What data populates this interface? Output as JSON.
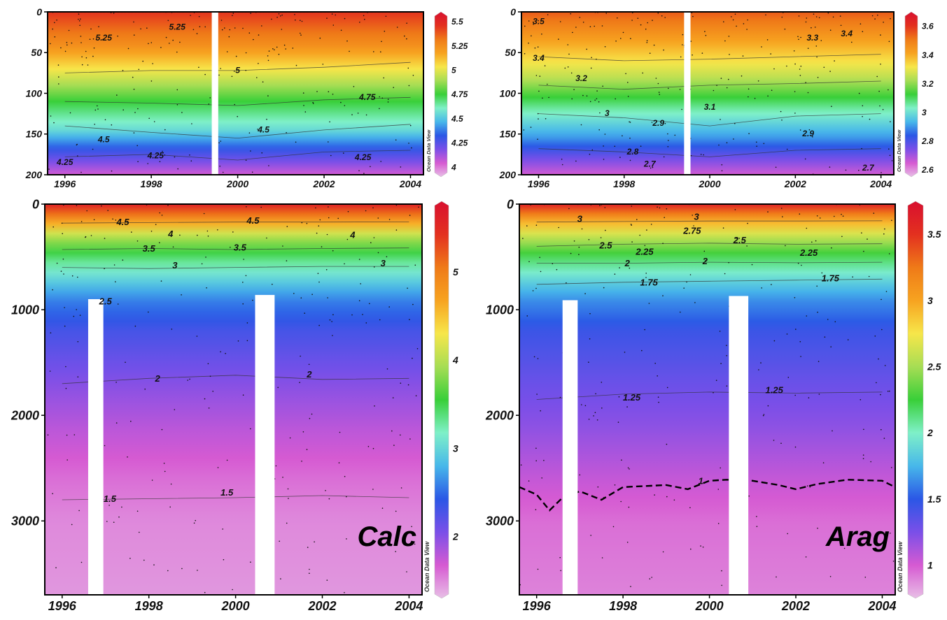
{
  "chart_data": [
    {
      "id": "top-left",
      "type": "heatmap",
      "yrange": [
        0,
        200
      ],
      "xrange": [
        1995.6,
        2004.3
      ],
      "xticks": [
        "1996",
        "1998",
        "2000",
        "2002",
        "2004"
      ],
      "yticks": [
        "0",
        "50",
        "100",
        "150",
        "200"
      ],
      "colorbar": {
        "range": [
          3.9,
          5.6
        ],
        "ticks": [
          "5.5",
          "5.25",
          "5",
          "4.75",
          "4.5",
          "4.25",
          "4"
        ]
      },
      "profile": [
        [
          0,
          5.45
        ],
        [
          40,
          5.25
        ],
        [
          75,
          5.0
        ],
        [
          110,
          4.75
        ],
        [
          145,
          4.55
        ],
        [
          170,
          4.3
        ],
        [
          200,
          4.05
        ]
      ],
      "gaps": [
        {
          "x": [
            1999.4,
            1999.55
          ],
          "ymin": 0
        }
      ],
      "contours": [
        {
          "label": "5",
          "points": [
            [
              1996,
              75
            ],
            [
              1998,
              72
            ],
            [
              2000,
              72
            ],
            [
              2002,
              68
            ],
            [
              2004,
              62
            ]
          ]
        },
        {
          "label": "4.75",
          "points": [
            [
              1996,
              110
            ],
            [
              1998,
              112
            ],
            [
              2000,
              115
            ],
            [
              2002,
              108
            ],
            [
              2004,
              105
            ]
          ]
        },
        {
          "label": "4.5",
          "points": [
            [
              1996,
              140
            ],
            [
              1998,
              148
            ],
            [
              2000,
              155
            ],
            [
              2002,
              145
            ],
            [
              2004,
              138
            ]
          ]
        },
        {
          "label": "4.25",
          "points": [
            [
              1996,
              178
            ],
            [
              1998,
              175
            ],
            [
              2000,
              182
            ],
            [
              2002,
              172
            ],
            [
              2004,
              170
            ]
          ]
        }
      ],
      "contour_labels": [
        {
          "text": "5.25",
          "x": 1996.9,
          "y": 35
        },
        {
          "text": "5.25",
          "x": 1998.6,
          "y": 22
        },
        {
          "text": "5",
          "x": 2000.0,
          "y": 75
        },
        {
          "text": "4.75",
          "x": 2003.0,
          "y": 108
        },
        {
          "text": "4.5",
          "x": 2000.6,
          "y": 148
        },
        {
          "text": "4.25",
          "x": 1996.0,
          "y": 188
        },
        {
          "text": "4.25",
          "x": 2002.9,
          "y": 182
        },
        {
          "text": "4.5",
          "x": 1996.9,
          "y": 160
        },
        {
          "text": "4.25",
          "x": 1998.1,
          "y": 180
        }
      ]
    },
    {
      "id": "top-right",
      "type": "heatmap",
      "yrange": [
        0,
        200
      ],
      "xrange": [
        1995.6,
        2004.3
      ],
      "xticks": [
        "1996",
        "1998",
        "2000",
        "2002",
        "2004"
      ],
      "yticks": [
        "0",
        "50",
        "100",
        "150",
        "200"
      ],
      "colorbar": {
        "range": [
          2.55,
          3.7
        ],
        "ticks": [
          "3.6",
          "3.4",
          "3.2",
          "3",
          "2.8",
          "2.6"
        ]
      },
      "profile": [
        [
          0,
          3.55
        ],
        [
          40,
          3.4
        ],
        [
          80,
          3.25
        ],
        [
          120,
          3.05
        ],
        [
          155,
          2.9
        ],
        [
          180,
          2.75
        ],
        [
          200,
          2.65
        ]
      ],
      "gaps": [
        {
          "x": [
            1999.4,
            1999.55
          ],
          "ymin": 0
        }
      ],
      "contours": [
        {
          "label": "3.4",
          "points": [
            [
              1996,
              55
            ],
            [
              1998,
              60
            ],
            [
              2000,
              58
            ],
            [
              2002,
              55
            ],
            [
              2004,
              52
            ]
          ]
        },
        {
          "label": "3.2",
          "points": [
            [
              1996,
              90
            ],
            [
              1998,
              95
            ],
            [
              2000,
              90
            ],
            [
              2002,
              88
            ],
            [
              2004,
              85
            ]
          ]
        },
        {
          "label": "3",
          "points": [
            [
              1996,
              125
            ],
            [
              1998,
              130
            ],
            [
              2000,
              140
            ],
            [
              2002,
              128
            ],
            [
              2004,
              125
            ]
          ]
        },
        {
          "label": "2.8",
          "points": [
            [
              1996,
              168
            ],
            [
              1998,
              172
            ],
            [
              2000,
              178
            ],
            [
              2002,
              170
            ],
            [
              2004,
              168
            ]
          ]
        }
      ],
      "contour_labels": [
        {
          "text": "3.5",
          "x": 1996.0,
          "y": 15
        },
        {
          "text": "3.4",
          "x": 1996.0,
          "y": 60
        },
        {
          "text": "3.2",
          "x": 1997.0,
          "y": 85
        },
        {
          "text": "3",
          "x": 1997.6,
          "y": 128
        },
        {
          "text": "2.9",
          "x": 1998.8,
          "y": 140
        },
        {
          "text": "3.1",
          "x": 2000.0,
          "y": 120
        },
        {
          "text": "2.9",
          "x": 2002.3,
          "y": 153
        },
        {
          "text": "2.7",
          "x": 2003.7,
          "y": 195
        },
        {
          "text": "2.8",
          "x": 1998.2,
          "y": 175
        },
        {
          "text": "3.3",
          "x": 2002.4,
          "y": 35
        },
        {
          "text": "3.4",
          "x": 2003.2,
          "y": 30
        },
        {
          "text": "2.7",
          "x": 1998.6,
          "y": 190
        }
      ]
    },
    {
      "id": "bottom-left",
      "type": "heatmap",
      "yrange": [
        0,
        3700
      ],
      "xrange": [
        1995.6,
        2004.3
      ],
      "xticks": [
        "1996",
        "1998",
        "2000",
        "2002",
        "2004"
      ],
      "yticks": [
        "0",
        "1000",
        "2000",
        "3000"
      ],
      "colorbar": {
        "range": [
          1.3,
          5.8
        ],
        "ticks": [
          "5",
          "4",
          "3",
          "2"
        ]
      },
      "profile": [
        [
          0,
          5.6
        ],
        [
          150,
          4.8
        ],
        [
          300,
          4.0
        ],
        [
          500,
          3.4
        ],
        [
          700,
          3.0
        ],
        [
          900,
          2.6
        ],
        [
          1200,
          2.3
        ],
        [
          1700,
          2.0
        ],
        [
          2100,
          1.8
        ],
        [
          2600,
          1.6
        ],
        [
          3000,
          1.5
        ],
        [
          3700,
          1.45
        ]
      ],
      "gaps": [
        {
          "x": [
            1996.6,
            1996.95
          ],
          "ymin": 900
        },
        {
          "x": [
            2000.45,
            2000.9
          ],
          "ymin": 860
        }
      ],
      "contours": [
        {
          "label": "4.5",
          "points": [
            [
              1996,
              180
            ],
            [
              1998,
              175
            ],
            [
              2000,
              170
            ],
            [
              2002,
              170
            ],
            [
              2004,
              168
            ]
          ]
        },
        {
          "label": "3.5",
          "points": [
            [
              1996,
              430
            ],
            [
              1998,
              420
            ],
            [
              2000,
              430
            ],
            [
              2002,
              420
            ],
            [
              2004,
              415
            ]
          ]
        },
        {
          "label": "3",
          "points": [
            [
              1996,
              600
            ],
            [
              1998,
              610
            ],
            [
              2000,
              600
            ],
            [
              2002,
              590
            ],
            [
              2004,
              590
            ]
          ]
        },
        {
          "label": "2",
          "points": [
            [
              1996,
              1700
            ],
            [
              1998,
              1650
            ],
            [
              2000,
              1620
            ],
            [
              2002,
              1660
            ],
            [
              2004,
              1650
            ]
          ]
        },
        {
          "label": "1.5",
          "points": [
            [
              1996,
              2800
            ],
            [
              1998,
              2790
            ],
            [
              2000,
              2780
            ],
            [
              2002,
              2760
            ],
            [
              2004,
              2780
            ]
          ]
        }
      ],
      "contour_labels": [
        {
          "text": "4.5",
          "x": 1997.4,
          "y": 200
        },
        {
          "text": "4.5",
          "x": 2000.4,
          "y": 185
        },
        {
          "text": "4",
          "x": 1998.5,
          "y": 310
        },
        {
          "text": "4",
          "x": 2002.7,
          "y": 320
        },
        {
          "text": "3.5",
          "x": 1998.0,
          "y": 450
        },
        {
          "text": "3.5",
          "x": 2000.1,
          "y": 440
        },
        {
          "text": "3",
          "x": 1998.6,
          "y": 610
        },
        {
          "text": "3",
          "x": 2003.4,
          "y": 590
        },
        {
          "text": "2.5",
          "x": 1997.0,
          "y": 950
        },
        {
          "text": "2",
          "x": 1998.2,
          "y": 1680
        },
        {
          "text": "2",
          "x": 2001.7,
          "y": 1640
        },
        {
          "text": "1.5",
          "x": 1997.1,
          "y": 2820
        },
        {
          "text": "1.5",
          "x": 1999.8,
          "y": 2760
        }
      ],
      "panel_label": "Calc"
    },
    {
      "id": "bottom-right",
      "type": "heatmap",
      "yrange": [
        0,
        3700
      ],
      "xrange": [
        1995.6,
        2004.3
      ],
      "xticks": [
        "1996",
        "1998",
        "2000",
        "2002",
        "2004"
      ],
      "yticks": [
        "0",
        "1000",
        "2000",
        "3000"
      ],
      "colorbar": {
        "range": [
          0.75,
          3.75
        ],
        "ticks": [
          "3.5",
          "3",
          "2.5",
          "2",
          "1.5",
          "1"
        ]
      },
      "profile": [
        [
          0,
          3.6
        ],
        [
          150,
          3.0
        ],
        [
          300,
          2.6
        ],
        [
          500,
          2.2
        ],
        [
          700,
          1.9
        ],
        [
          900,
          1.65
        ],
        [
          1200,
          1.45
        ],
        [
          1700,
          1.3
        ],
        [
          2100,
          1.2
        ],
        [
          2600,
          1.05
        ],
        [
          3000,
          0.95
        ],
        [
          3700,
          0.9
        ]
      ],
      "gaps": [
        {
          "x": [
            1996.6,
            1996.95
          ],
          "ymin": 910
        },
        {
          "x": [
            2000.45,
            2000.9
          ],
          "ymin": 870
        }
      ],
      "contours": [
        {
          "label": "3",
          "points": [
            [
              1996,
              170
            ],
            [
              1998,
              165
            ],
            [
              2000,
              160
            ],
            [
              2002,
              160
            ],
            [
              2004,
              158
            ]
          ]
        },
        {
          "label": "2.5",
          "points": [
            [
              1996,
              400
            ],
            [
              1998,
              380
            ],
            [
              2000,
              370
            ],
            [
              2002,
              380
            ],
            [
              2004,
              375
            ]
          ]
        },
        {
          "label": "2",
          "points": [
            [
              1996,
              560
            ],
            [
              1998,
              560
            ],
            [
              2000,
              550
            ],
            [
              2002,
              555
            ],
            [
              2004,
              550
            ]
          ]
        },
        {
          "label": "1.75",
          "points": [
            [
              1996,
              760
            ],
            [
              1998,
              740
            ],
            [
              2000,
              730
            ],
            [
              2002,
              720
            ],
            [
              2004,
              710
            ]
          ]
        },
        {
          "label": "1.25",
          "points": [
            [
              1996,
              1850
            ],
            [
              1998,
              1800
            ],
            [
              2000,
              1780
            ],
            [
              2002,
              1790
            ],
            [
              2004,
              1780
            ]
          ]
        }
      ],
      "dashed": {
        "label": "1",
        "points": [
          [
            1995.6,
            2680
          ],
          [
            1996.0,
            2750
          ],
          [
            1996.3,
            2900
          ],
          [
            1996.6,
            2780
          ],
          [
            1997.0,
            2720
          ],
          [
            1997.5,
            2800
          ],
          [
            1998.0,
            2680
          ],
          [
            1999.0,
            2660
          ],
          [
            1999.5,
            2700
          ],
          [
            2000.0,
            2620
          ],
          [
            2000.4,
            2610
          ],
          [
            2001.0,
            2620
          ],
          [
            2001.6,
            2660
          ],
          [
            2002.0,
            2700
          ],
          [
            2002.5,
            2650
          ],
          [
            2003.2,
            2610
          ],
          [
            2004.0,
            2620
          ],
          [
            2004.3,
            2680
          ]
        ]
      },
      "contour_labels": [
        {
          "text": "3",
          "x": 1997.0,
          "y": 170
        },
        {
          "text": "3",
          "x": 1999.7,
          "y": 150
        },
        {
          "text": "2.75",
          "x": 1999.6,
          "y": 280
        },
        {
          "text": "2.5",
          "x": 1997.6,
          "y": 420
        },
        {
          "text": "2.5",
          "x": 2000.7,
          "y": 370
        },
        {
          "text": "2.25",
          "x": 1998.5,
          "y": 480
        },
        {
          "text": "2.25",
          "x": 2002.3,
          "y": 490
        },
        {
          "text": "2",
          "x": 1998.1,
          "y": 590
        },
        {
          "text": "2",
          "x": 1999.9,
          "y": 570
        },
        {
          "text": "1.75",
          "x": 1998.6,
          "y": 770
        },
        {
          "text": "1.75",
          "x": 2002.8,
          "y": 730
        },
        {
          "text": "1.25",
          "x": 1998.2,
          "y": 1860
        },
        {
          "text": "1.25",
          "x": 2001.5,
          "y": 1790
        },
        {
          "text": "1",
          "x": 1999.8,
          "y": 2650
        }
      ],
      "panel_label": "Arag"
    }
  ],
  "watermark": "Ocean Data View",
  "colormap": [
    "#e8bfe6",
    "#d65ad2",
    "#7a4fe8",
    "#2b57e6",
    "#47b7ea",
    "#7ff0c8",
    "#39cf39",
    "#a6dd54",
    "#f7e64a",
    "#f7a320",
    "#ef7a18",
    "#e3301f",
    "#d8102f"
  ]
}
